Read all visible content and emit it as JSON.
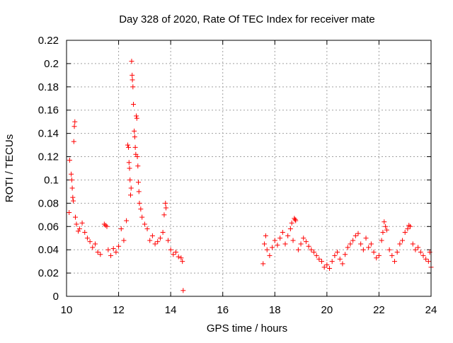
{
  "chart_data": {
    "type": "scatter",
    "title": "Day 328 of 2020, Rate Of TEC Index for receiver mate",
    "xlabel": "GPS time / hours",
    "ylabel": "ROTI / TECUs",
    "xlim": [
      10,
      24
    ],
    "ylim": [
      0,
      0.22
    ],
    "x_ticks": [
      "10",
      "12",
      "14",
      "16",
      "18",
      "20",
      "22",
      "24"
    ],
    "y_ticks": [
      "0",
      "0.02",
      "0.04",
      "0.06",
      "0.08",
      "0.1",
      "0.12",
      "0.14",
      "0.16",
      "0.18",
      "0.2",
      "0.22"
    ],
    "grid": true,
    "legend": "none",
    "marker": "plus",
    "color": "#ff0000",
    "series": [
      {
        "values": [
          [
            10.1,
            0.072
          ],
          [
            10.12,
            0.117
          ],
          [
            10.18,
            0.105
          ],
          [
            10.2,
            0.1
          ],
          [
            10.22,
            0.093
          ],
          [
            10.24,
            0.085
          ],
          [
            10.26,
            0.082
          ],
          [
            10.28,
            0.133
          ],
          [
            10.3,
            0.146
          ],
          [
            10.32,
            0.15
          ],
          [
            10.34,
            0.068
          ],
          [
            10.38,
            0.062
          ],
          [
            10.45,
            0.056
          ],
          [
            10.5,
            0.058
          ],
          [
            10.6,
            0.063
          ],
          [
            10.7,
            0.055
          ],
          [
            10.8,
            0.05
          ],
          [
            10.9,
            0.047
          ],
          [
            11.0,
            0.042
          ],
          [
            11.1,
            0.045
          ],
          [
            11.2,
            0.038
          ],
          [
            11.3,
            0.036
          ],
          [
            11.45,
            0.062
          ],
          [
            11.5,
            0.061
          ],
          [
            11.55,
            0.06
          ],
          [
            11.6,
            0.04
          ],
          [
            11.7,
            0.035
          ],
          [
            11.8,
            0.041
          ],
          [
            11.9,
            0.038
          ],
          [
            12.0,
            0.043
          ],
          [
            12.1,
            0.058
          ],
          [
            12.2,
            0.048
          ],
          [
            12.3,
            0.065
          ],
          [
            12.35,
            0.13
          ],
          [
            12.38,
            0.128
          ],
          [
            12.4,
            0.115
          ],
          [
            12.42,
            0.11
          ],
          [
            12.44,
            0.1
          ],
          [
            12.46,
            0.087
          ],
          [
            12.48,
            0.093
          ],
          [
            12.5,
            0.202
          ],
          [
            12.52,
            0.19
          ],
          [
            12.53,
            0.186
          ],
          [
            12.55,
            0.18
          ],
          [
            12.57,
            0.165
          ],
          [
            12.6,
            0.142
          ],
          [
            12.62,
            0.137
          ],
          [
            12.64,
            0.128
          ],
          [
            12.66,
            0.122
          ],
          [
            12.68,
            0.155
          ],
          [
            12.7,
            0.153
          ],
          [
            12.72,
            0.12
          ],
          [
            12.74,
            0.112
          ],
          [
            12.76,
            0.098
          ],
          [
            12.78,
            0.09
          ],
          [
            12.8,
            0.08
          ],
          [
            12.85,
            0.075
          ],
          [
            12.9,
            0.068
          ],
          [
            13.0,
            0.062
          ],
          [
            13.1,
            0.058
          ],
          [
            13.2,
            0.048
          ],
          [
            13.3,
            0.052
          ],
          [
            13.4,
            0.045
          ],
          [
            13.5,
            0.047
          ],
          [
            13.6,
            0.05
          ],
          [
            13.7,
            0.055
          ],
          [
            13.75,
            0.07
          ],
          [
            13.8,
            0.08
          ],
          [
            13.82,
            0.076
          ],
          [
            13.9,
            0.048
          ],
          [
            14.0,
            0.04
          ],
          [
            14.1,
            0.036
          ],
          [
            14.2,
            0.038
          ],
          [
            14.3,
            0.034
          ],
          [
            14.4,
            0.033
          ],
          [
            14.45,
            0.03
          ],
          [
            14.48,
            0.005
          ],
          [
            17.55,
            0.028
          ],
          [
            17.6,
            0.045
          ],
          [
            17.65,
            0.052
          ],
          [
            17.7,
            0.04
          ],
          [
            17.8,
            0.035
          ],
          [
            17.9,
            0.042
          ],
          [
            18.0,
            0.048
          ],
          [
            18.1,
            0.044
          ],
          [
            18.2,
            0.05
          ],
          [
            18.3,
            0.055
          ],
          [
            18.4,
            0.045
          ],
          [
            18.5,
            0.052
          ],
          [
            18.6,
            0.058
          ],
          [
            18.65,
            0.063
          ],
          [
            18.7,
            0.048
          ],
          [
            18.75,
            0.067
          ],
          [
            18.78,
            0.066
          ],
          [
            18.8,
            0.065
          ],
          [
            18.9,
            0.04
          ],
          [
            19.0,
            0.045
          ],
          [
            19.1,
            0.05
          ],
          [
            19.2,
            0.047
          ],
          [
            19.3,
            0.043
          ],
          [
            19.4,
            0.04
          ],
          [
            19.5,
            0.038
          ],
          [
            19.6,
            0.035
          ],
          [
            19.7,
            0.032
          ],
          [
            19.8,
            0.03
          ],
          [
            19.9,
            0.025
          ],
          [
            20.0,
            0.027
          ],
          [
            20.1,
            0.024
          ],
          [
            20.2,
            0.03
          ],
          [
            20.3,
            0.035
          ],
          [
            20.4,
            0.038
          ],
          [
            20.5,
            0.032
          ],
          [
            20.6,
            0.028
          ],
          [
            20.7,
            0.036
          ],
          [
            20.8,
            0.042
          ],
          [
            20.9,
            0.045
          ],
          [
            21.0,
            0.048
          ],
          [
            21.1,
            0.052
          ],
          [
            21.2,
            0.054
          ],
          [
            21.3,
            0.045
          ],
          [
            21.4,
            0.04
          ],
          [
            21.5,
            0.05
          ],
          [
            21.6,
            0.042
          ],
          [
            21.7,
            0.045
          ],
          [
            21.8,
            0.038
          ],
          [
            21.9,
            0.033
          ],
          [
            22.0,
            0.035
          ],
          [
            22.1,
            0.048
          ],
          [
            22.15,
            0.055
          ],
          [
            22.2,
            0.064
          ],
          [
            22.25,
            0.06
          ],
          [
            22.3,
            0.057
          ],
          [
            22.4,
            0.04
          ],
          [
            22.5,
            0.035
          ],
          [
            22.6,
            0.03
          ],
          [
            22.7,
            0.038
          ],
          [
            22.8,
            0.045
          ],
          [
            22.9,
            0.048
          ],
          [
            23.0,
            0.055
          ],
          [
            23.1,
            0.058
          ],
          [
            23.15,
            0.061
          ],
          [
            23.2,
            0.06
          ],
          [
            23.3,
            0.045
          ],
          [
            23.4,
            0.04
          ],
          [
            23.5,
            0.042
          ],
          [
            23.6,
            0.038
          ],
          [
            23.7,
            0.035
          ],
          [
            23.8,
            0.032
          ],
          [
            23.9,
            0.03
          ],
          [
            23.95,
            0.038
          ],
          [
            24.0,
            0.025
          ]
        ]
      }
    ]
  }
}
